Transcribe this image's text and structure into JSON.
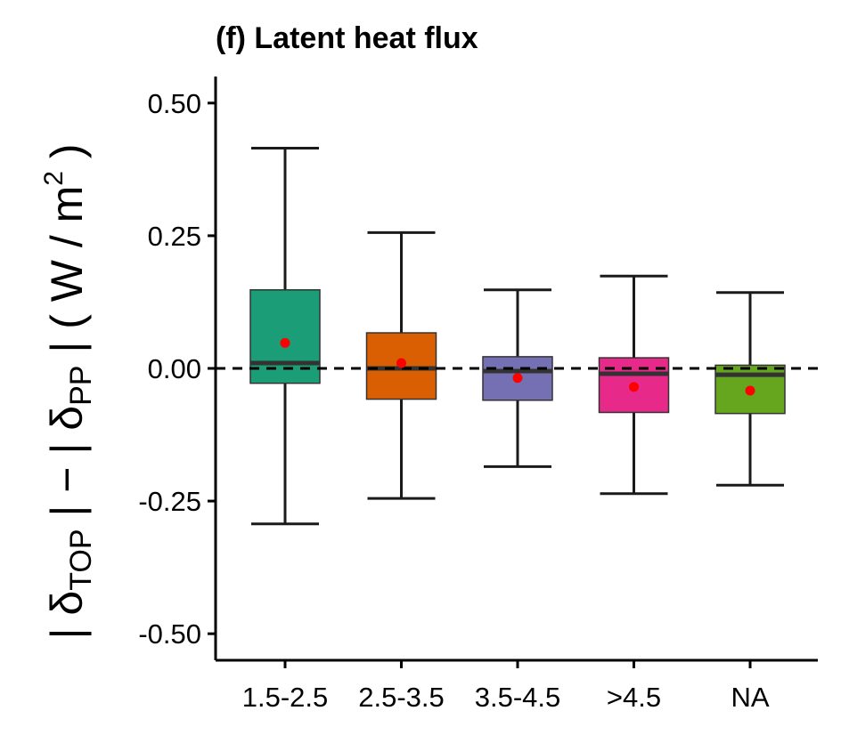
{
  "chart_data": {
    "type": "boxplot",
    "title": "(f) Latent heat flux",
    "ylabel": {
      "bar_open": "| δ",
      "sub1": "TOP",
      "middle": " | − | δ",
      "sub2": "PP",
      "units_open": " | ( W / m",
      "sup": "2",
      "units_close": " )"
    },
    "xlabel": "",
    "ylim": [
      -0.55,
      0.55
    ],
    "yticks": [
      {
        "value": 0.5,
        "label": "0.50"
      },
      {
        "value": 0.25,
        "label": "0.25"
      },
      {
        "value": 0.0,
        "label": "0.00"
      },
      {
        "value": -0.25,
        "label": "-0.25"
      },
      {
        "value": -0.5,
        "label": "-0.50"
      }
    ],
    "categories": [
      "1.5-2.5",
      "2.5-3.5",
      "3.5-4.5",
      ">4.5",
      "NA"
    ],
    "boxes": [
      {
        "category": "1.5-2.5",
        "whisker_low": -0.293,
        "q1": -0.028,
        "median": 0.01,
        "q3": 0.148,
        "whisker_high": 0.415,
        "mean": 0.048,
        "color": "#1B9E77"
      },
      {
        "category": "2.5-3.5",
        "whisker_low": -0.245,
        "q1": -0.058,
        "median": 0.0,
        "q3": 0.067,
        "whisker_high": 0.256,
        "mean": 0.01,
        "color": "#D95F02"
      },
      {
        "category": "3.5-4.5",
        "whisker_low": -0.185,
        "q1": -0.06,
        "median": -0.005,
        "q3": 0.022,
        "whisker_high": 0.148,
        "mean": -0.018,
        "color": "#7570B3"
      },
      {
        "category": ">4.5",
        "whisker_low": -0.236,
        "q1": -0.083,
        "median": -0.01,
        "q3": 0.02,
        "whisker_high": 0.174,
        "mean": -0.035,
        "color": "#E7298A"
      },
      {
        "category": "NA",
        "whisker_low": -0.22,
        "q1": -0.085,
        "median": -0.012,
        "q3": 0.006,
        "whisker_high": 0.143,
        "mean": -0.042,
        "color": "#66A61E"
      }
    ],
    "reference_line": {
      "value": 0.0,
      "style": "dashed"
    },
    "mean_marker_color": "#FF0000",
    "grid": false,
    "legend": "none"
  }
}
